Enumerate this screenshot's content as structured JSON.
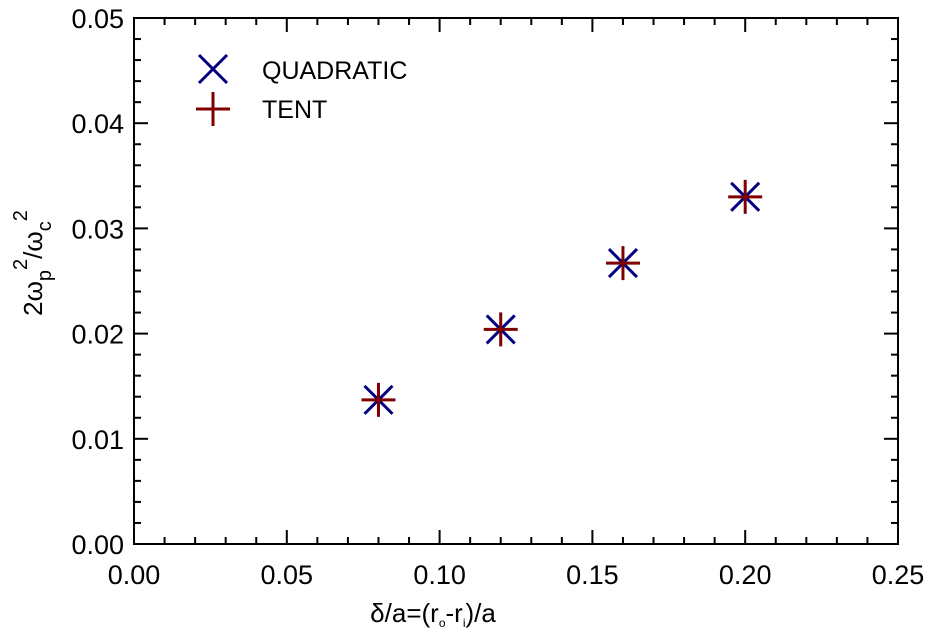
{
  "chart_data": {
    "type": "scatter",
    "title": "",
    "xlabel": {
      "prefix": "δ/a=(r",
      "sub1": "o",
      "mid": "-r",
      "sub2": "i",
      "suffix": ")/a"
    },
    "ylabel": {
      "p1": "2ω",
      "sub1": "p",
      "sup1": "2",
      "p2": "/ω",
      "sub2": "c",
      "sup2": "2"
    },
    "xlim": [
      0.0,
      0.25
    ],
    "ylim": [
      0.0,
      0.05
    ],
    "xticks": [
      "0.00",
      "0.05",
      "0.10",
      "0.15",
      "0.20",
      "0.25"
    ],
    "yticks": [
      "0.00",
      "0.01",
      "0.02",
      "0.03",
      "0.04",
      "0.05"
    ],
    "grid": false,
    "legend_position": "top-left",
    "series": [
      {
        "name": "QUADRATIC",
        "marker": "x",
        "color": "#000080",
        "points": [
          {
            "x": 0.08,
            "y": 0.0137
          },
          {
            "x": 0.12,
            "y": 0.0204
          },
          {
            "x": 0.16,
            "y": 0.0267
          },
          {
            "x": 0.2,
            "y": 0.033
          }
        ]
      },
      {
        "name": "TENT",
        "marker": "plus",
        "color": "#800000",
        "points": [
          {
            "x": 0.08,
            "y": 0.0137
          },
          {
            "x": 0.12,
            "y": 0.0204
          },
          {
            "x": 0.16,
            "y": 0.0267
          },
          {
            "x": 0.2,
            "y": 0.033
          }
        ]
      }
    ]
  }
}
